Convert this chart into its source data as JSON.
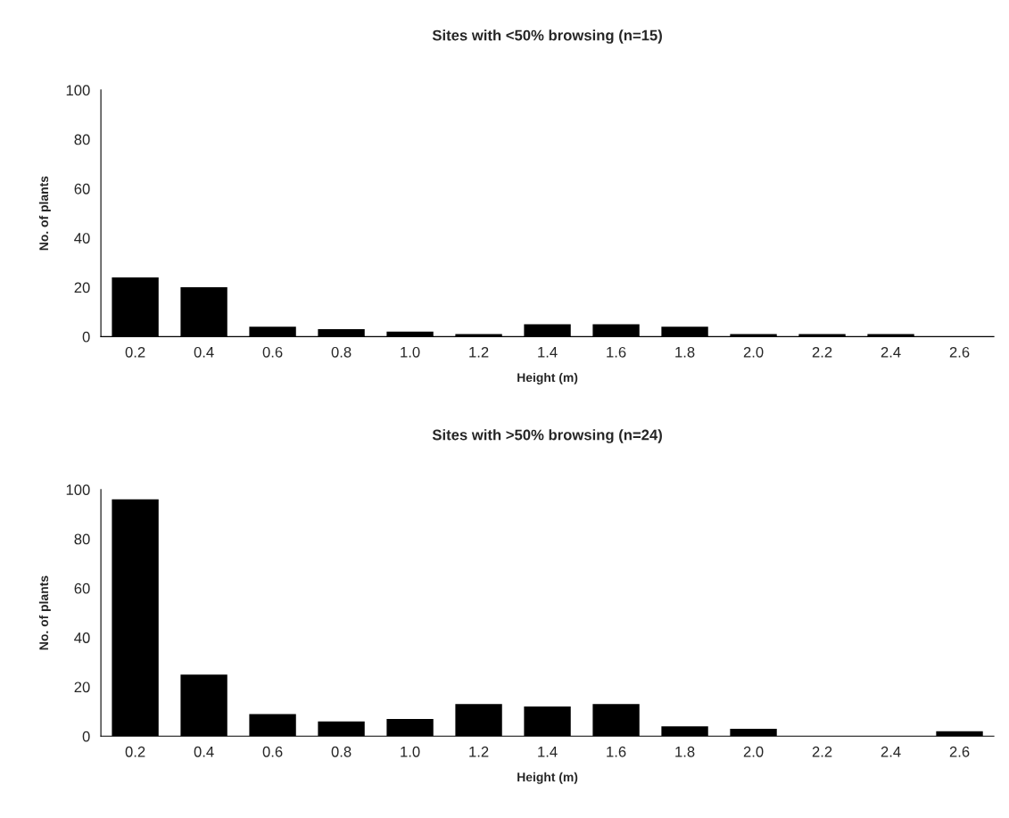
{
  "chart_data": [
    {
      "type": "bar",
      "title": "Sites with <50% browsing (n=15)",
      "xlabel": "Height (m)",
      "ylabel": "No. of plants",
      "categories": [
        "0.2",
        "0.4",
        "0.6",
        "0.8",
        "1.0",
        "1.2",
        "1.4",
        "1.6",
        "1.8",
        "2.0",
        "2.2",
        "2.4",
        "2.6"
      ],
      "values": [
        24,
        20,
        4,
        3,
        2,
        1,
        5,
        5,
        4,
        1,
        1,
        1,
        0
      ],
      "color": "#000000",
      "ylim": [
        0,
        100
      ],
      "yticks": [
        0,
        20,
        40,
        60,
        80,
        100
      ],
      "grid": false,
      "legend": false
    },
    {
      "type": "bar",
      "title": "Sites with >50% browsing (n=24)",
      "xlabel": "Height (m)",
      "ylabel": "No. of plants",
      "categories": [
        "0.2",
        "0.4",
        "0.6",
        "0.8",
        "1.0",
        "1.2",
        "1.4",
        "1.6",
        "1.8",
        "2.0",
        "2.2",
        "2.4",
        "2.6"
      ],
      "values": [
        96,
        25,
        9,
        6,
        7,
        13,
        12,
        13,
        4,
        3,
        0,
        0,
        2
      ],
      "color": "#000000",
      "ylim": [
        0,
        100
      ],
      "yticks": [
        0,
        20,
        40,
        60,
        80,
        100
      ],
      "grid": false,
      "legend": false
    }
  ]
}
